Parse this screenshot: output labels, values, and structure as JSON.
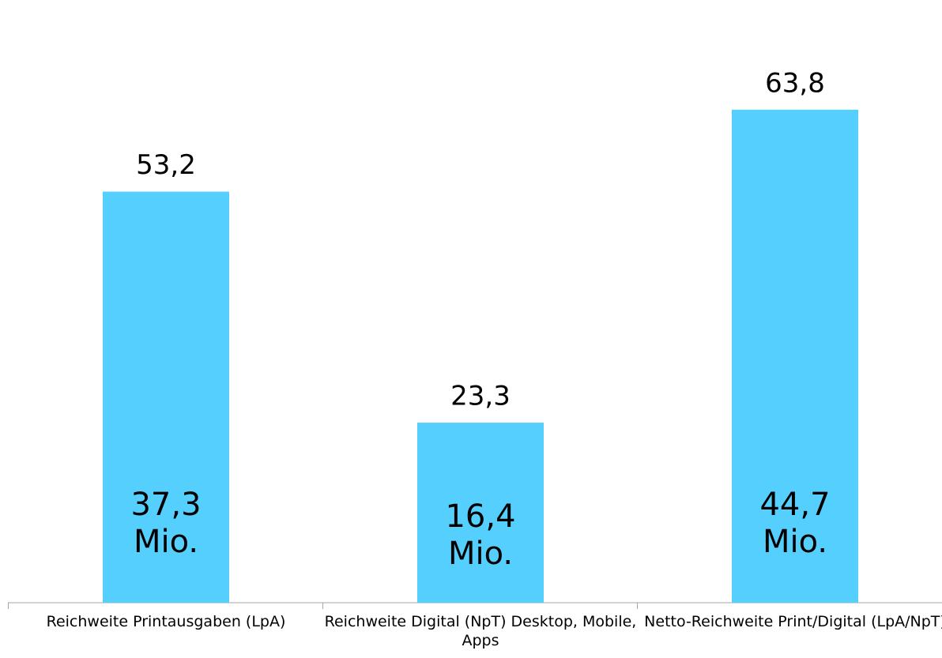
{
  "chart_data": {
    "type": "bar",
    "categories": [
      "Reichweite Printausgaben (LpA)",
      "Reichweite Digital (NpT) Desktop, Mobile, Apps",
      "Netto-Reichweite Print/Digital (LpA/NpT)"
    ],
    "values": [
      53.2,
      23.3,
      63.8
    ],
    "value_labels": [
      "53,2",
      "23,3",
      "63,8"
    ],
    "bar_annotations": [
      [
        "37,3",
        "Mio."
      ],
      [
        "16,4",
        "Mio."
      ],
      [
        "44,7",
        "Mio."
      ]
    ],
    "color": "#55cffe",
    "ylim": [
      0,
      78
    ]
  }
}
